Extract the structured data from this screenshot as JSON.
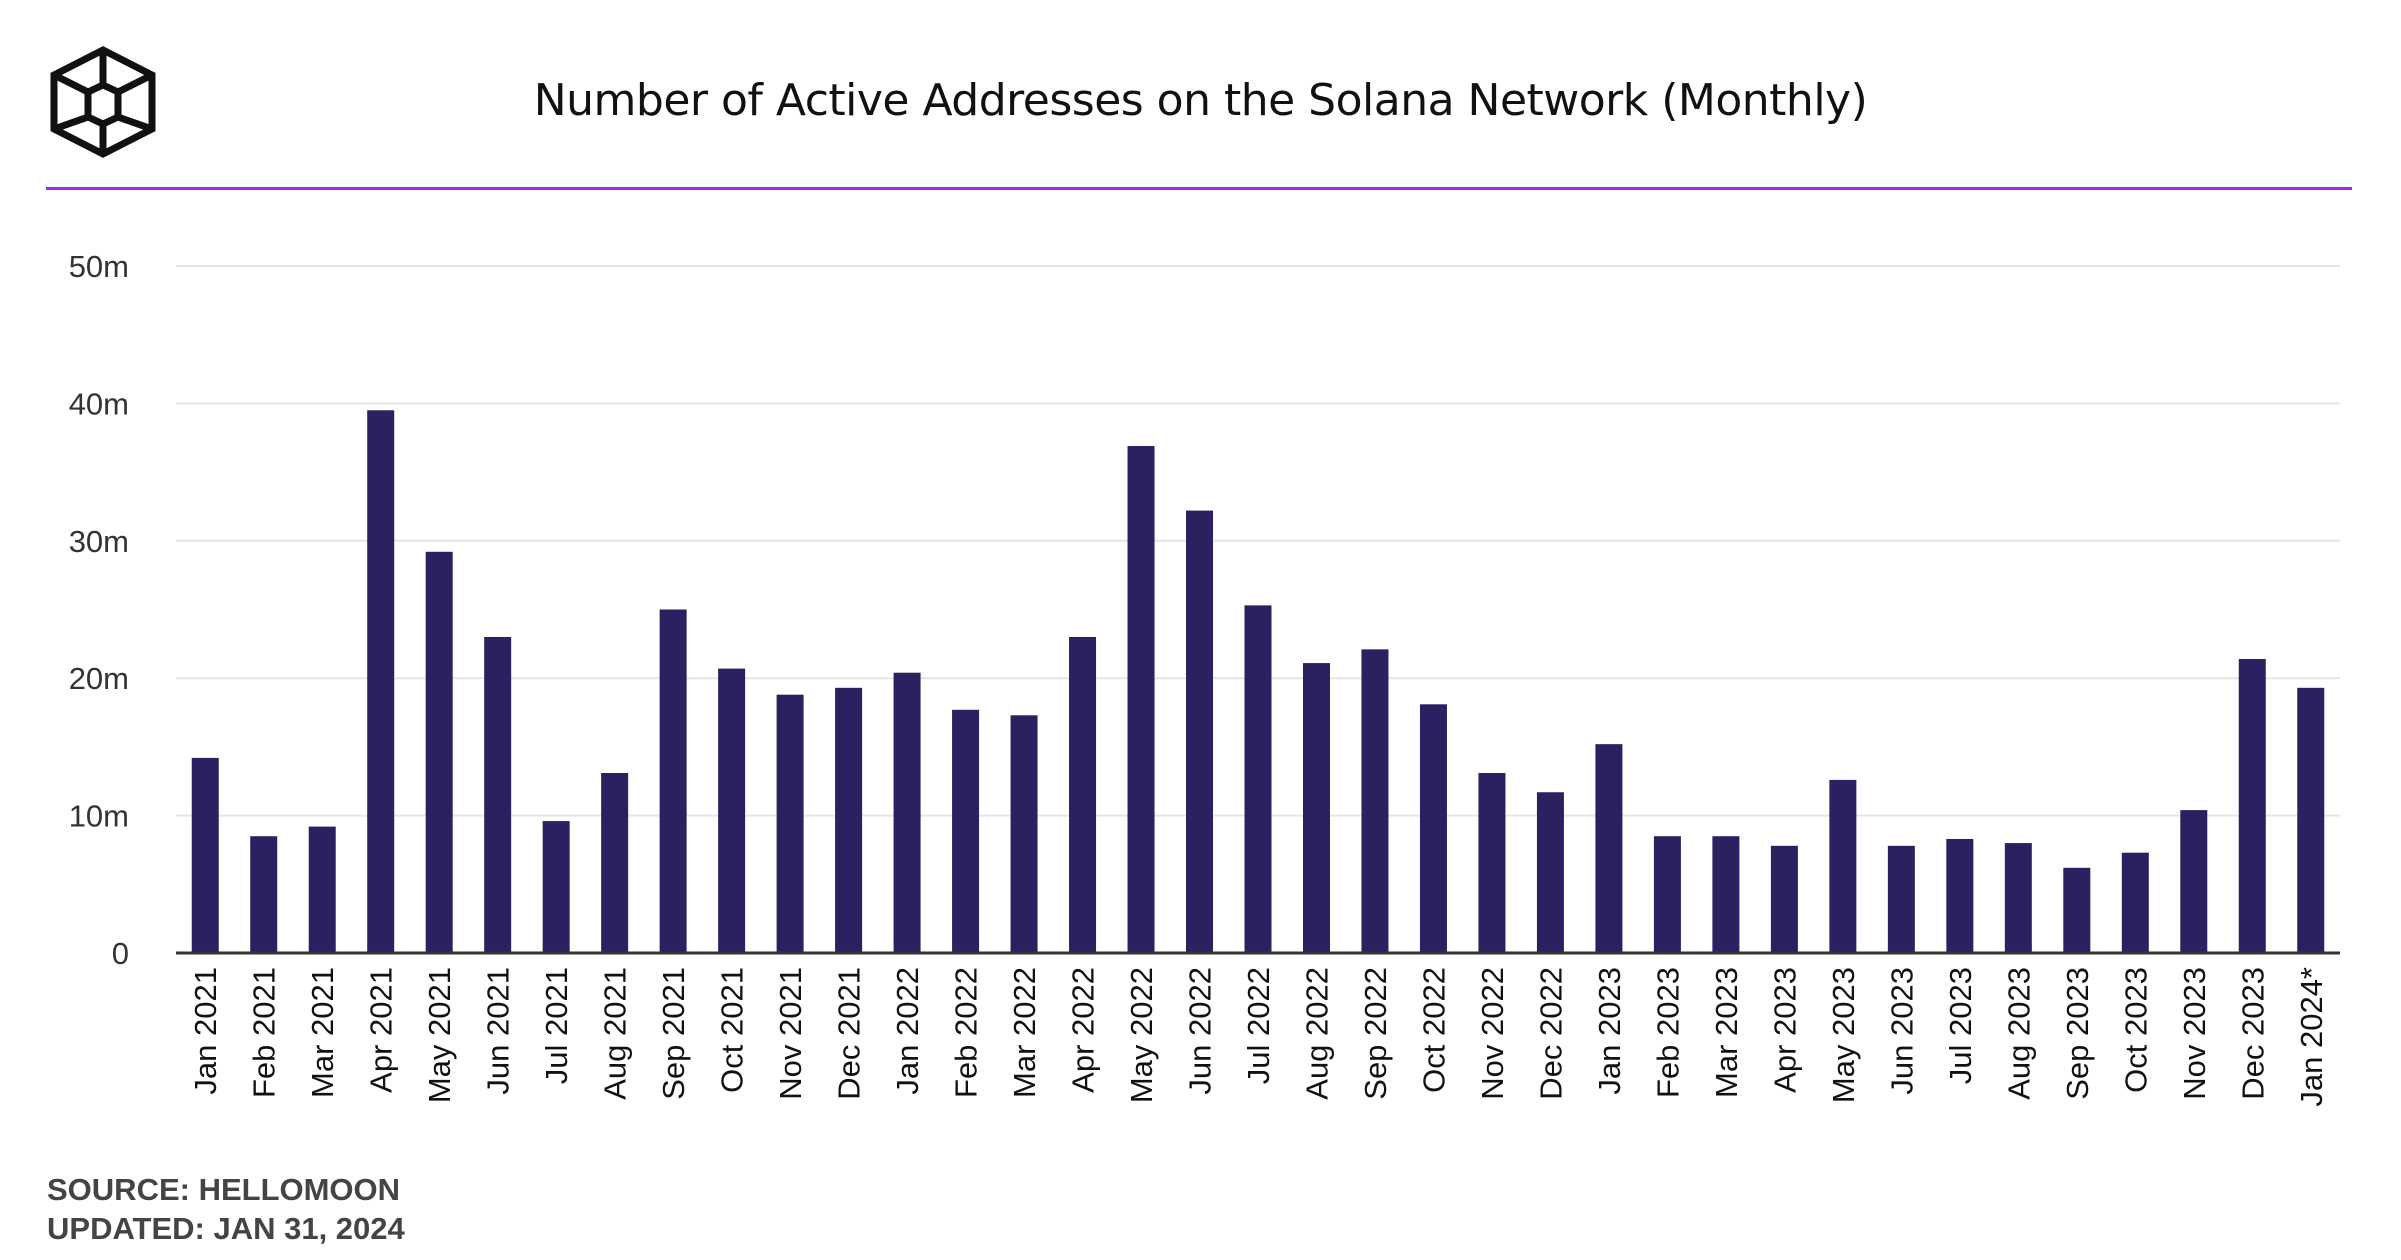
{
  "header": {
    "title": "Number of Active Addresses on the Solana Network (Monthly)",
    "logo_icon": "cube-logo-icon",
    "accent_color": "#9b2fe0"
  },
  "footer": {
    "source": "SOURCE: HELLOMOON",
    "updated": "UPDATED: JAN 31, 2024"
  },
  "chart_data": {
    "type": "bar",
    "title": "Number of Active Addresses on the Solana Network (Monthly)",
    "xlabel": "",
    "ylabel": "",
    "unit": "m",
    "ylim": [
      0,
      50
    ],
    "yticks": [
      0,
      10,
      20,
      30,
      40,
      50
    ],
    "ytick_labels": [
      "0",
      "10m",
      "20m",
      "30m",
      "40m",
      "50m"
    ],
    "grid": true,
    "bar_color": "#2b2060",
    "categories": [
      "Jan 2021",
      "Feb 2021",
      "Mar 2021",
      "Apr 2021",
      "May 2021",
      "Jun 2021",
      "Jul 2021",
      "Aug 2021",
      "Sep 2021",
      "Oct 2021",
      "Nov 2021",
      "Dec 2021",
      "Jan 2022",
      "Feb 2022",
      "Mar 2022",
      "Apr 2022",
      "May 2022",
      "Jun 2022",
      "Jul 2022",
      "Aug 2022",
      "Sep 2022",
      "Oct 2022",
      "Nov 2022",
      "Dec 2022",
      "Jan 2023",
      "Feb 2023",
      "Mar 2023",
      "Apr 2023",
      "May 2023",
      "Jun 2023",
      "Jul 2023",
      "Aug 2023",
      "Sep 2023",
      "Oct 2023",
      "Nov 2023",
      "Dec 2023",
      "Jan 2024*"
    ],
    "values": [
      14.2,
      8.5,
      9.2,
      39.5,
      29.2,
      23.0,
      9.6,
      13.1,
      25.0,
      20.7,
      18.8,
      19.3,
      20.4,
      17.7,
      17.3,
      23.0,
      36.9,
      32.2,
      25.3,
      21.1,
      22.1,
      18.1,
      13.1,
      11.7,
      15.2,
      8.5,
      8.5,
      7.8,
      12.6,
      7.8,
      8.3,
      8.0,
      6.2,
      7.3,
      10.4,
      21.4,
      19.3
    ]
  }
}
